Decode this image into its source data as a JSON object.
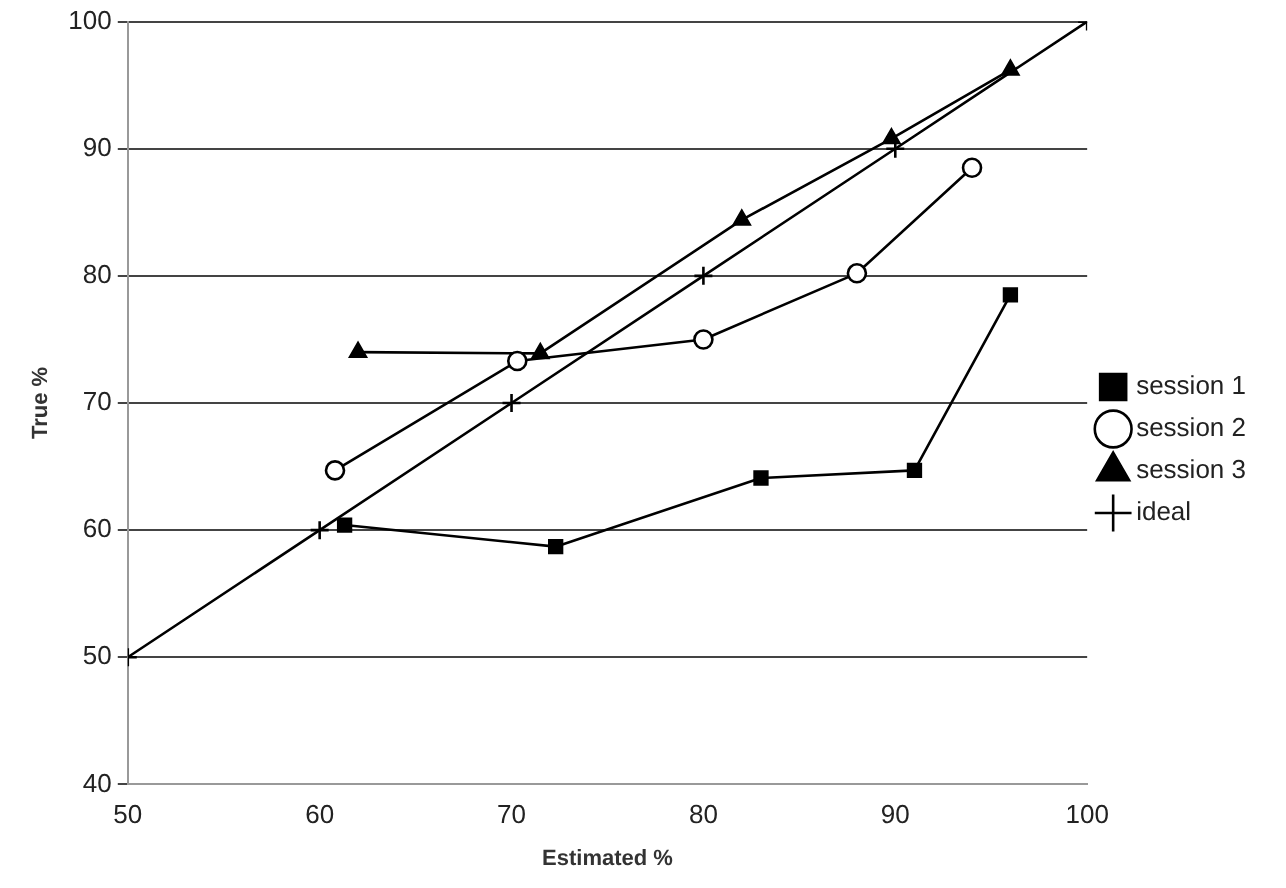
{
  "chart_data": {
    "type": "line",
    "xlabel": "Estimated %",
    "ylabel": "True %",
    "xlim": [
      50,
      100
    ],
    "xticks": [
      50,
      60,
      70,
      80,
      90,
      100
    ],
    "ylim": [
      40,
      100
    ],
    "yticks": [
      40,
      50,
      60,
      70,
      80,
      90,
      100
    ],
    "grid": "y",
    "legend": "right",
    "series": [
      {
        "name": "session 1",
        "color": "#000000",
        "marker": "square",
        "x": [
          61.3,
          72.3,
          83,
          91,
          96
        ],
        "values": [
          60.4,
          58.7,
          64.1,
          64.7,
          78.5
        ]
      },
      {
        "name": "session 2",
        "color": "#000000",
        "marker": "circle",
        "x": [
          60.8,
          70.3,
          80,
          88,
          94
        ],
        "values": [
          64.7,
          73.3,
          75,
          80.2,
          88.5
        ]
      },
      {
        "name": "session 3",
        "color": "#000000",
        "marker": "triangle",
        "x": [
          62,
          71.5,
          82,
          89.8,
          96
        ],
        "values": [
          74,
          73.9,
          84.4,
          90.8,
          96.2
        ]
      },
      {
        "name": "ideal",
        "color": "#000000",
        "marker": "cross",
        "x": [
          50,
          60,
          70,
          80,
          90,
          100
        ],
        "values": [
          50,
          60,
          70,
          80,
          90,
          100
        ]
      }
    ]
  }
}
